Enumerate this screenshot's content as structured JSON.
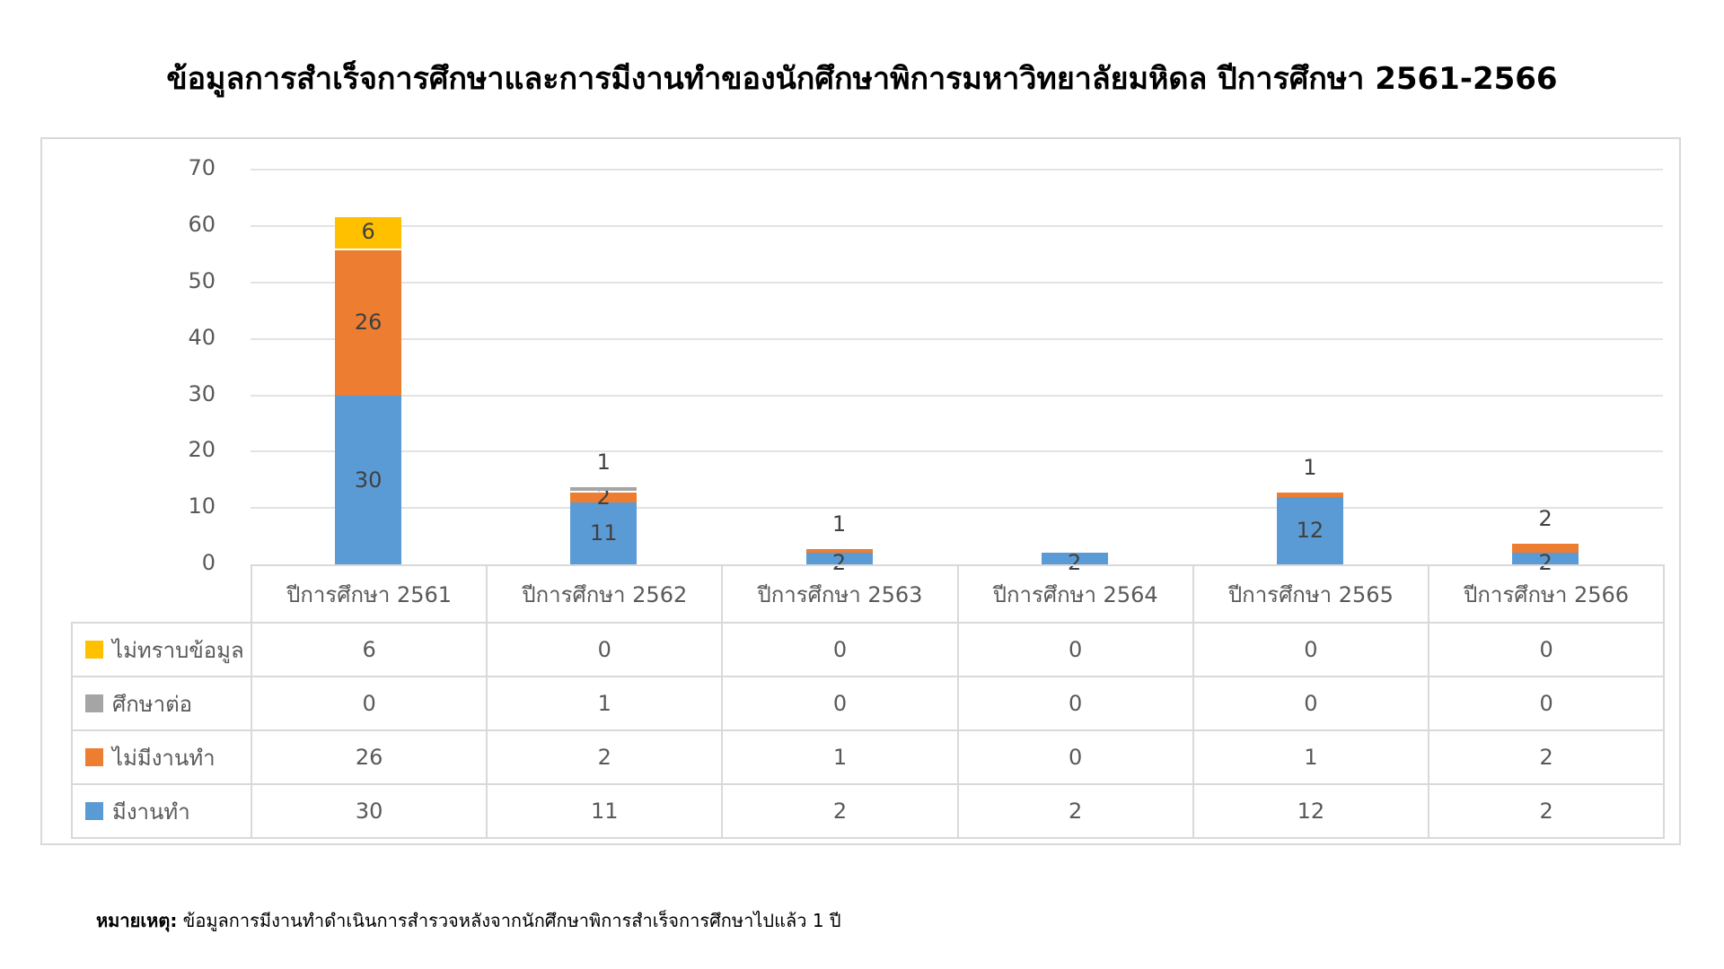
{
  "title": "ข้อมูลการสำเร็จการศึกษาและการมีงานทำของนักศึกษาพิการมหาวิทยาลัยมหิดล ปีการศึกษา 2561-2566",
  "footnote": {
    "label": "หมายเหตุ:",
    "text": " ข้อมูลการมีงานทำดำเนินการสำรวจหลังจากนักศึกษาพิการสำเร็จการศึกษาไปแล้ว 1 ปี"
  },
  "colors": {
    "employed": "#5B9BD5",
    "unemployed": "#ED7D31",
    "further_study": "#A5A5A5",
    "unknown": "#FFC000",
    "grid": "#E3E3E3",
    "border": "#D9D9D9"
  },
  "y_ticks": [
    "70",
    "60",
    "50",
    "40",
    "30",
    "20",
    "10",
    "0"
  ],
  "categories": [
    "ปีการศึกษา 2561",
    "ปีการศึกษา 2562",
    "ปีการศึกษา 2563",
    "ปีการศึกษา 2564",
    "ปีการศึกษา 2565",
    "ปีการศึกษา 2566"
  ],
  "legend_rows": [
    {
      "label": "ไม่ทราบข้อมูล",
      "color": "#FFC000",
      "values": [
        "6",
        "0",
        "0",
        "0",
        "0",
        "0"
      ]
    },
    {
      "label": "ศึกษาต่อ",
      "color": "#A5A5A5",
      "values": [
        "0",
        "1",
        "0",
        "0",
        "0",
        "0"
      ]
    },
    {
      "label": "ไม่มีงานทำ",
      "color": "#ED7D31",
      "values": [
        "26",
        "2",
        "1",
        "0",
        "1",
        "2"
      ]
    },
    {
      "label": "มีงานทำ",
      "color": "#5B9BD5",
      "values": [
        "30",
        "11",
        "2",
        "2",
        "12",
        "2"
      ]
    }
  ],
  "chart_data": {
    "type": "bar",
    "stacked": true,
    "title": "ข้อมูลการสำเร็จการศึกษาและการมีงานทำของนักศึกษาพิการมหาวิทยาลัยมหิดล ปีการศึกษา 2561-2566",
    "xlabel": "",
    "ylabel": "",
    "ylim": [
      0,
      70
    ],
    "y_ticks": [
      0,
      10,
      20,
      30,
      40,
      50,
      60,
      70
    ],
    "grid": true,
    "legend_position": "data-table-bottom",
    "categories": [
      "ปีการศึกษา 2561",
      "ปีการศึกษา 2562",
      "ปีการศึกษา 2563",
      "ปีการศึกษา 2564",
      "ปีการศึกษา 2565",
      "ปีการศึกษา 2566"
    ],
    "series": [
      {
        "name": "มีงานทำ",
        "color": "#5B9BD5",
        "values": [
          30,
          11,
          2,
          2,
          12,
          2
        ]
      },
      {
        "name": "ไม่มีงานทำ",
        "color": "#ED7D31",
        "values": [
          26,
          2,
          1,
          0,
          1,
          2
        ]
      },
      {
        "name": "ศึกษาต่อ",
        "color": "#A5A5A5",
        "values": [
          0,
          1,
          0,
          0,
          0,
          0
        ]
      },
      {
        "name": "ไม่ทราบข้อมูล",
        "color": "#FFC000",
        "values": [
          6,
          0,
          0,
          0,
          0,
          0
        ]
      }
    ],
    "data_labels": [
      {
        "category": "ปีการศึกษา 2561",
        "labels": [
          "30",
          "26",
          "6"
        ]
      },
      {
        "category": "ปีการศึกษา 2562",
        "labels": [
          "11",
          "2",
          "1"
        ]
      },
      {
        "category": "ปีการศึกษา 2563",
        "labels": [
          "2",
          "1"
        ]
      },
      {
        "category": "ปีการศึกษา 2564",
        "labels": [
          "2"
        ]
      },
      {
        "category": "ปีการศึกษา 2565",
        "labels": [
          "12",
          "1"
        ]
      },
      {
        "category": "ปีการศึกษา 2566",
        "labels": [
          "2",
          "2"
        ]
      }
    ],
    "footnote": "หมายเหตุ: ข้อมูลการมีงานทำดำเนินการสำรวจหลังจากนักศึกษาพิการสำเร็จการศึกษาไปแล้ว 1 ปี"
  }
}
